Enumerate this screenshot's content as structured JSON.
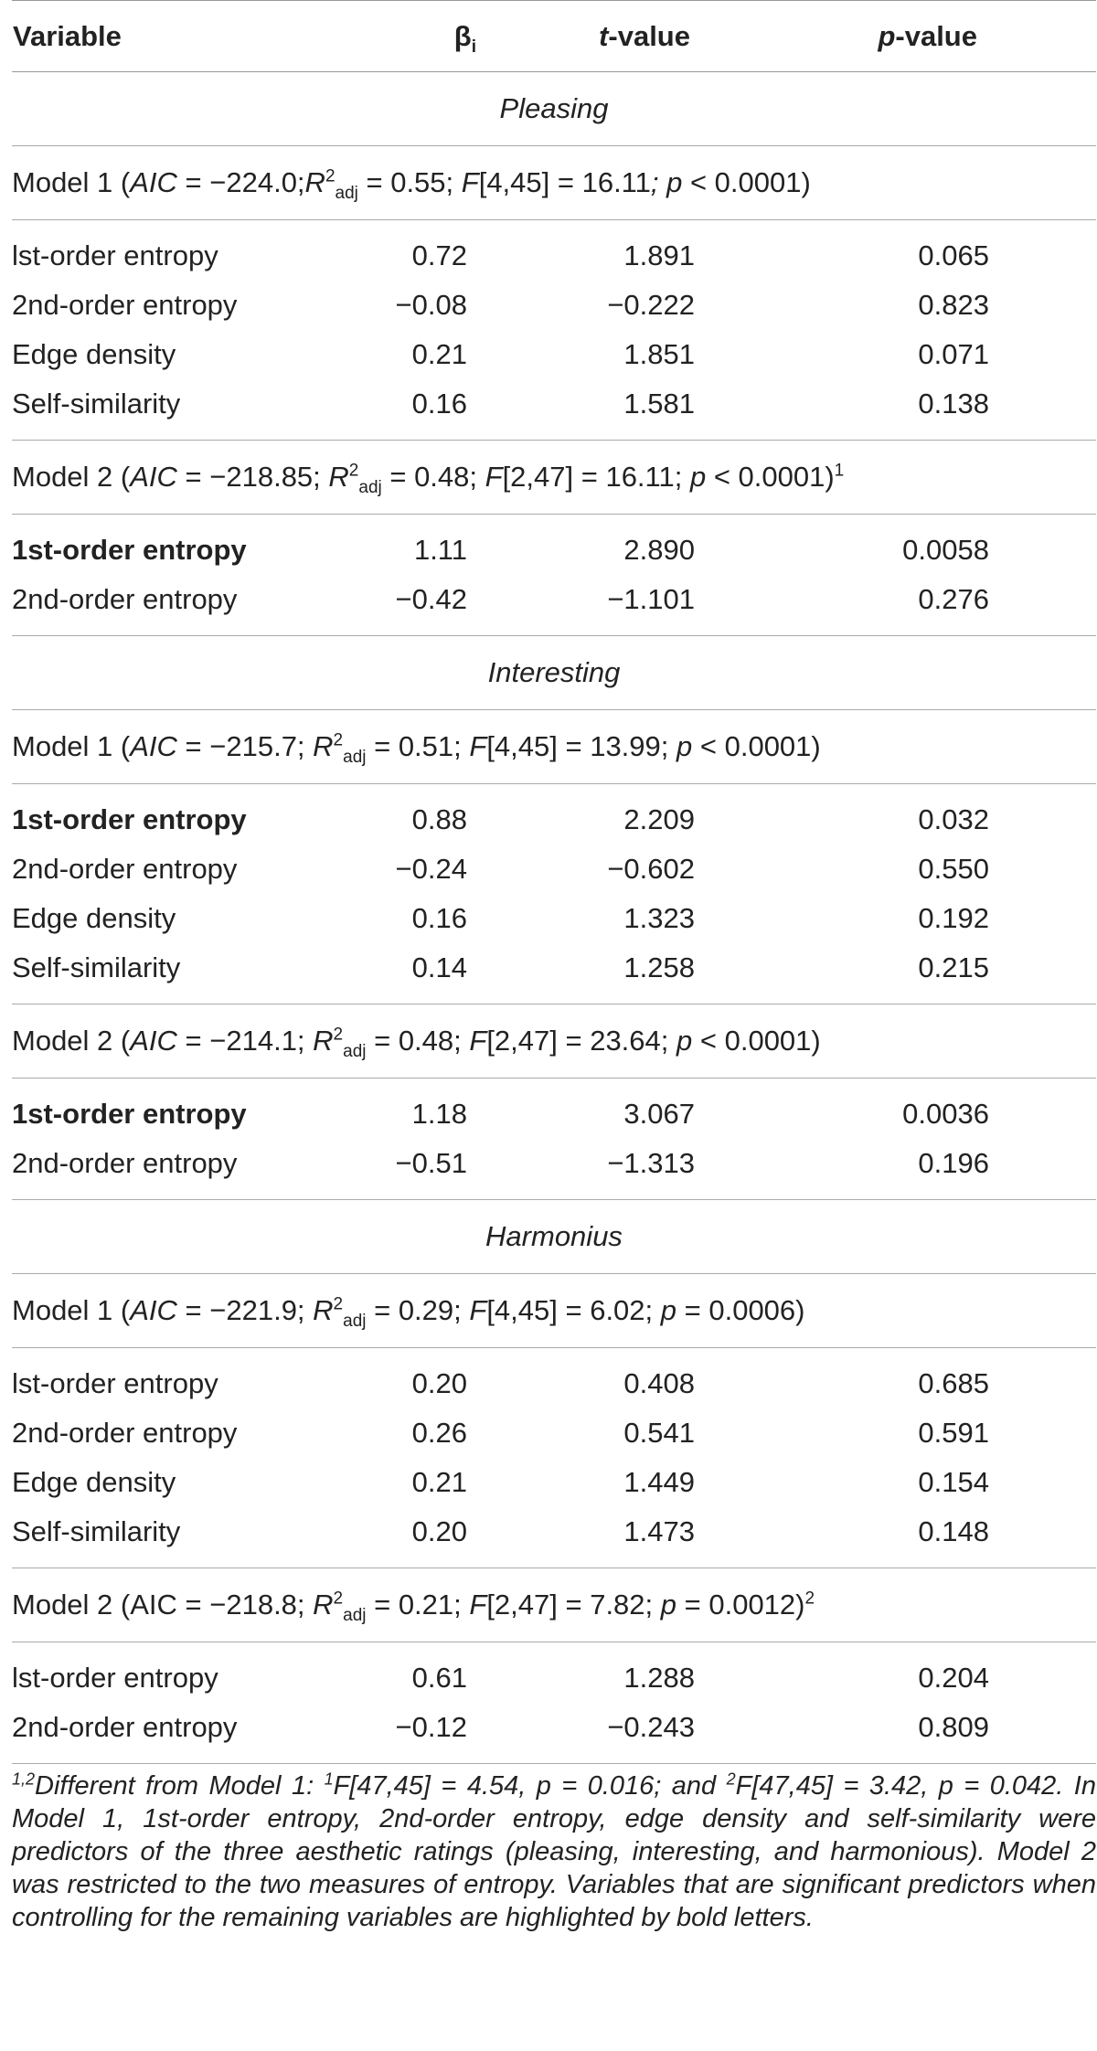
{
  "header": {
    "variable": "Variable",
    "beta": "β",
    "beta_sub": "i",
    "t_italic": "t",
    "t_rest": "-value",
    "p_italic": "p",
    "p_rest": "-value"
  },
  "groups": [
    {
      "title": "Pleasing",
      "model1": {
        "label": "Model 1 (",
        "stats": [
          {
            "t": "AIC",
            "i": true
          },
          {
            "t": " = −224.0;",
            "i": false
          },
          {
            "t": "R",
            "i": true
          },
          {
            "t": "2",
            "sup": true
          },
          {
            "t": "adj",
            "sub": true
          },
          {
            "t": " = 0.55; ",
            "i": false
          },
          {
            "t": "F",
            "i": true
          },
          {
            "t": "[4,45] = 16.11",
            "i": false
          },
          {
            "t": "; p",
            "i": true
          },
          {
            "t": " < 0.0001)",
            "i": false
          }
        ],
        "rows": [
          {
            "variable": "lst-order entropy",
            "beta": "0.72",
            "t": "1.891",
            "p": "0.065",
            "bold": false
          },
          {
            "variable": "2nd-order entropy",
            "beta": "−0.08",
            "t": "−0.222",
            "p": "0.823",
            "bold": false
          },
          {
            "variable": "Edge density",
            "beta": "0.21",
            "t": "1.851",
            "p": "0.071",
            "bold": false
          },
          {
            "variable": "Self-similarity",
            "beta": "0.16",
            "t": "1.581",
            "p": "0.138",
            "bold": false
          }
        ]
      },
      "model2": {
        "label": "Model 2 (",
        "stats": [
          {
            "t": "AIC",
            "i": true
          },
          {
            "t": " = −218.85; ",
            "i": false
          },
          {
            "t": "R",
            "i": true
          },
          {
            "t": "2",
            "sup": true
          },
          {
            "t": "adj",
            "sub": true
          },
          {
            "t": " = 0.48; ",
            "i": false
          },
          {
            "t": "F",
            "i": true
          },
          {
            "t": "[2,47] = 16.11; ",
            "i": false
          },
          {
            "t": "p",
            "i": true
          },
          {
            "t": " < 0.0001)",
            "i": false
          },
          {
            "t": "1",
            "sup": true
          }
        ],
        "rows": [
          {
            "variable": "1st-order entropy",
            "beta": "1.11",
            "t": "2.890",
            "p": "0.0058",
            "bold": true
          },
          {
            "variable": "2nd-order entropy",
            "beta": "−0.42",
            "t": "−1.101",
            "p": "0.276",
            "bold": false
          }
        ]
      }
    },
    {
      "title": "Interesting",
      "model1": {
        "label": "Model 1 (",
        "stats": [
          {
            "t": "AIC",
            "i": true
          },
          {
            "t": " = −215.7; ",
            "i": false
          },
          {
            "t": "R",
            "i": true
          },
          {
            "t": "2",
            "sup": true
          },
          {
            "t": "adj",
            "sub": true
          },
          {
            "t": " = 0.51; ",
            "i": false
          },
          {
            "t": "F",
            "i": true
          },
          {
            "t": "[4,45] = 13.99; ",
            "i": false
          },
          {
            "t": "p",
            "i": true
          },
          {
            "t": " < 0.0001)",
            "i": false
          }
        ],
        "rows": [
          {
            "variable": "1st-order entropy",
            "beta": "0.88",
            "t": "2.209",
            "p": "0.032",
            "bold": true
          },
          {
            "variable": "2nd-order entropy",
            "beta": "−0.24",
            "t": "−0.602",
            "p": "0.550",
            "bold": false
          },
          {
            "variable": "Edge density",
            "beta": "0.16",
            "t": "1.323",
            "p": "0.192",
            "bold": false
          },
          {
            "variable": "Self-similarity",
            "beta": "0.14",
            "t": "1.258",
            "p": "0.215",
            "bold": false
          }
        ]
      },
      "model2": {
        "label": "Model 2 (",
        "stats": [
          {
            "t": "AIC",
            "i": true
          },
          {
            "t": " = −214.1; ",
            "i": false
          },
          {
            "t": "R",
            "i": true
          },
          {
            "t": "2",
            "sup": true
          },
          {
            "t": "adj",
            "sub": true
          },
          {
            "t": " = 0.48; ",
            "i": false
          },
          {
            "t": "F",
            "i": true
          },
          {
            "t": "[2,47] = 23.64; ",
            "i": false
          },
          {
            "t": "p",
            "i": true
          },
          {
            "t": " < 0.0001)",
            "i": false
          }
        ],
        "rows": [
          {
            "variable": "1st-order entropy",
            "beta": "1.18",
            "t": "3.067",
            "p": "0.0036",
            "bold": true
          },
          {
            "variable": "2nd-order entropy",
            "beta": "−0.51",
            "t": "−1.313",
            "p": "0.196",
            "bold": false
          }
        ]
      }
    },
    {
      "title": "Harmonius",
      "model1": {
        "label": "Model 1 (",
        "stats": [
          {
            "t": "AIC",
            "i": true
          },
          {
            "t": " = −221.9; ",
            "i": false
          },
          {
            "t": "R",
            "i": true
          },
          {
            "t": "2",
            "sup": true
          },
          {
            "t": "adj",
            "sub": true
          },
          {
            "t": " = 0.29; ",
            "i": false
          },
          {
            "t": "F",
            "i": true
          },
          {
            "t": "[4,45] = 6.02; ",
            "i": false
          },
          {
            "t": "p",
            "i": true
          },
          {
            "t": " = 0.0006)",
            "i": false
          }
        ],
        "rows": [
          {
            "variable": "lst-order entropy",
            "beta": "0.20",
            "t": "0.408",
            "p": "0.685",
            "bold": false
          },
          {
            "variable": "2nd-order entropy",
            "beta": "0.26",
            "t": "0.541",
            "p": "0.591",
            "bold": false
          },
          {
            "variable": "Edge density",
            "beta": "0.21",
            "t": "1.449",
            "p": "0.154",
            "bold": false
          },
          {
            "variable": "Self-similarity",
            "beta": "0.20",
            "t": "1.473",
            "p": "0.148",
            "bold": false
          }
        ]
      },
      "model2": {
        "label": "Model 2 (",
        "stats": [
          {
            "t": "AIC = −218.8; ",
            "i": false
          },
          {
            "t": "R",
            "i": true
          },
          {
            "t": "2",
            "sup": true
          },
          {
            "t": "adj",
            "sub": true
          },
          {
            "t": " = 0.21; ",
            "i": false
          },
          {
            "t": "F",
            "i": true
          },
          {
            "t": "[2,47] = 7.82; ",
            "i": false
          },
          {
            "t": "p",
            "i": true
          },
          {
            "t": " = 0.0012)",
            "i": false
          },
          {
            "t": "2",
            "sup": true
          }
        ],
        "rows": [
          {
            "variable": "lst-order entropy",
            "beta": "0.61",
            "t": "1.288",
            "p": "0.204",
            "bold": false
          },
          {
            "variable": "2nd-order entropy",
            "beta": "−0.12",
            "t": "−0.243",
            "p": "0.809",
            "bold": false
          }
        ]
      }
    }
  ],
  "footnote": {
    "marks": "1,2",
    "p1": "Different from Model 1: ",
    "s1": "1",
    "p2": "F[47,45] = 4.54, p = 0.016; and ",
    "s2": "2",
    "p3": "F[47,45] = 3.42, p = 0.042. In Model 1, 1st-order entropy, 2nd-order entropy, edge density and self-similarity were predictors of the three aesthetic ratings (pleasing, interesting, and harmonious). Model 2 was restricted to the two measures of entropy. Variables that are significant predictors when controlling for the remaining variables are highlighted by bold letters."
  }
}
